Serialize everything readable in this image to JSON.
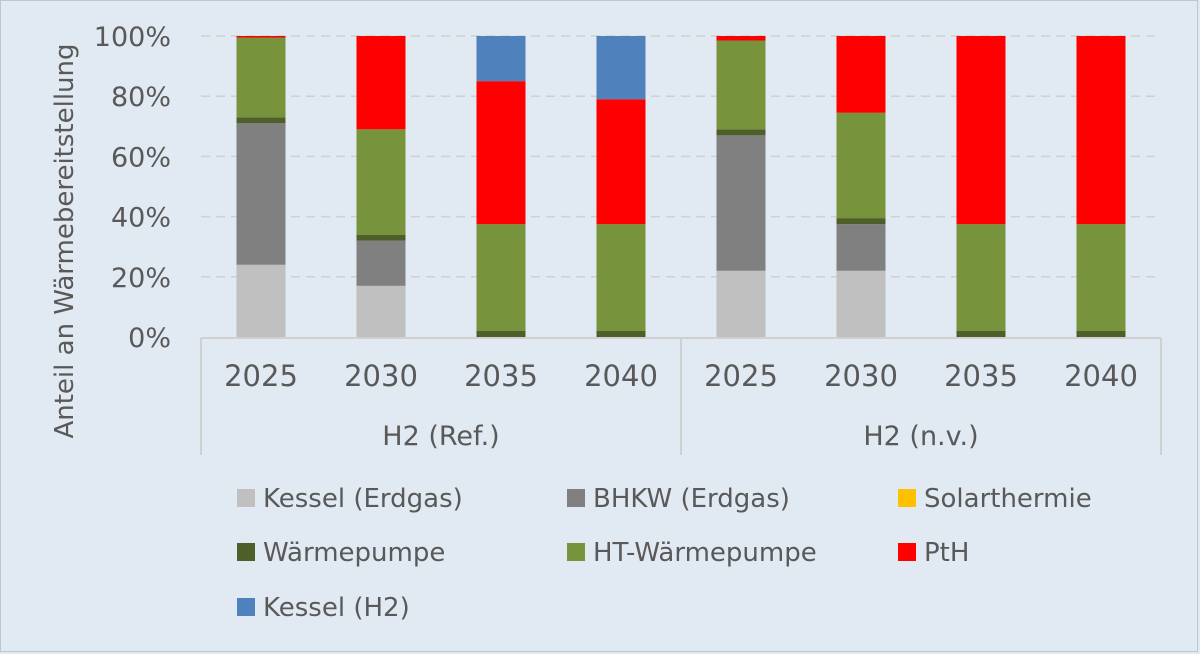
{
  "chart_data": {
    "type": "bar",
    "stacked": "percent",
    "ylabel": "Anteil an Wärmebereitstellung",
    "ylim": [
      0,
      100
    ],
    "yticks": [
      "0%",
      "20%",
      "40%",
      "60%",
      "80%",
      "100%"
    ],
    "groups": [
      {
        "name": "H2 (Ref.)",
        "categories": [
          "2025",
          "2030",
          "2035",
          "2040"
        ]
      },
      {
        "name": "H2 (n.v.)",
        "categories": [
          "2025",
          "2030",
          "2035",
          "2040"
        ]
      }
    ],
    "series": [
      {
        "name": "Kessel (Erdgas)",
        "color": "#c0c0c0",
        "values": [
          24,
          17,
          0,
          0,
          22,
          22,
          0,
          0
        ]
      },
      {
        "name": "BHKW (Erdgas)",
        "color": "#808080",
        "values": [
          47,
          15,
          0,
          0,
          45,
          15.5,
          0,
          0
        ]
      },
      {
        "name": "Solarthermie",
        "color": "#ffc000",
        "values": [
          0,
          0,
          0,
          0,
          0,
          0,
          0,
          0
        ]
      },
      {
        "name": "Wärmepumpe",
        "color": "#4e5f2a",
        "values": [
          2,
          2,
          2,
          2,
          2,
          2,
          2,
          2
        ]
      },
      {
        "name": "HT-Wärmepumpe",
        "color": "#77933c",
        "values": [
          26.5,
          35,
          35.5,
          35.5,
          29.5,
          35,
          35.5,
          35.5
        ]
      },
      {
        "name": "PtH",
        "color": "#ff0000",
        "values": [
          0.5,
          31,
          47.5,
          41.5,
          1.5,
          25.5,
          62.5,
          62.5
        ]
      },
      {
        "name": "Kessel (H2)",
        "color": "#4f81bd",
        "values": [
          0,
          0,
          15,
          21,
          0,
          0,
          0,
          0
        ]
      }
    ],
    "grid": true,
    "legend_position": "bottom"
  }
}
